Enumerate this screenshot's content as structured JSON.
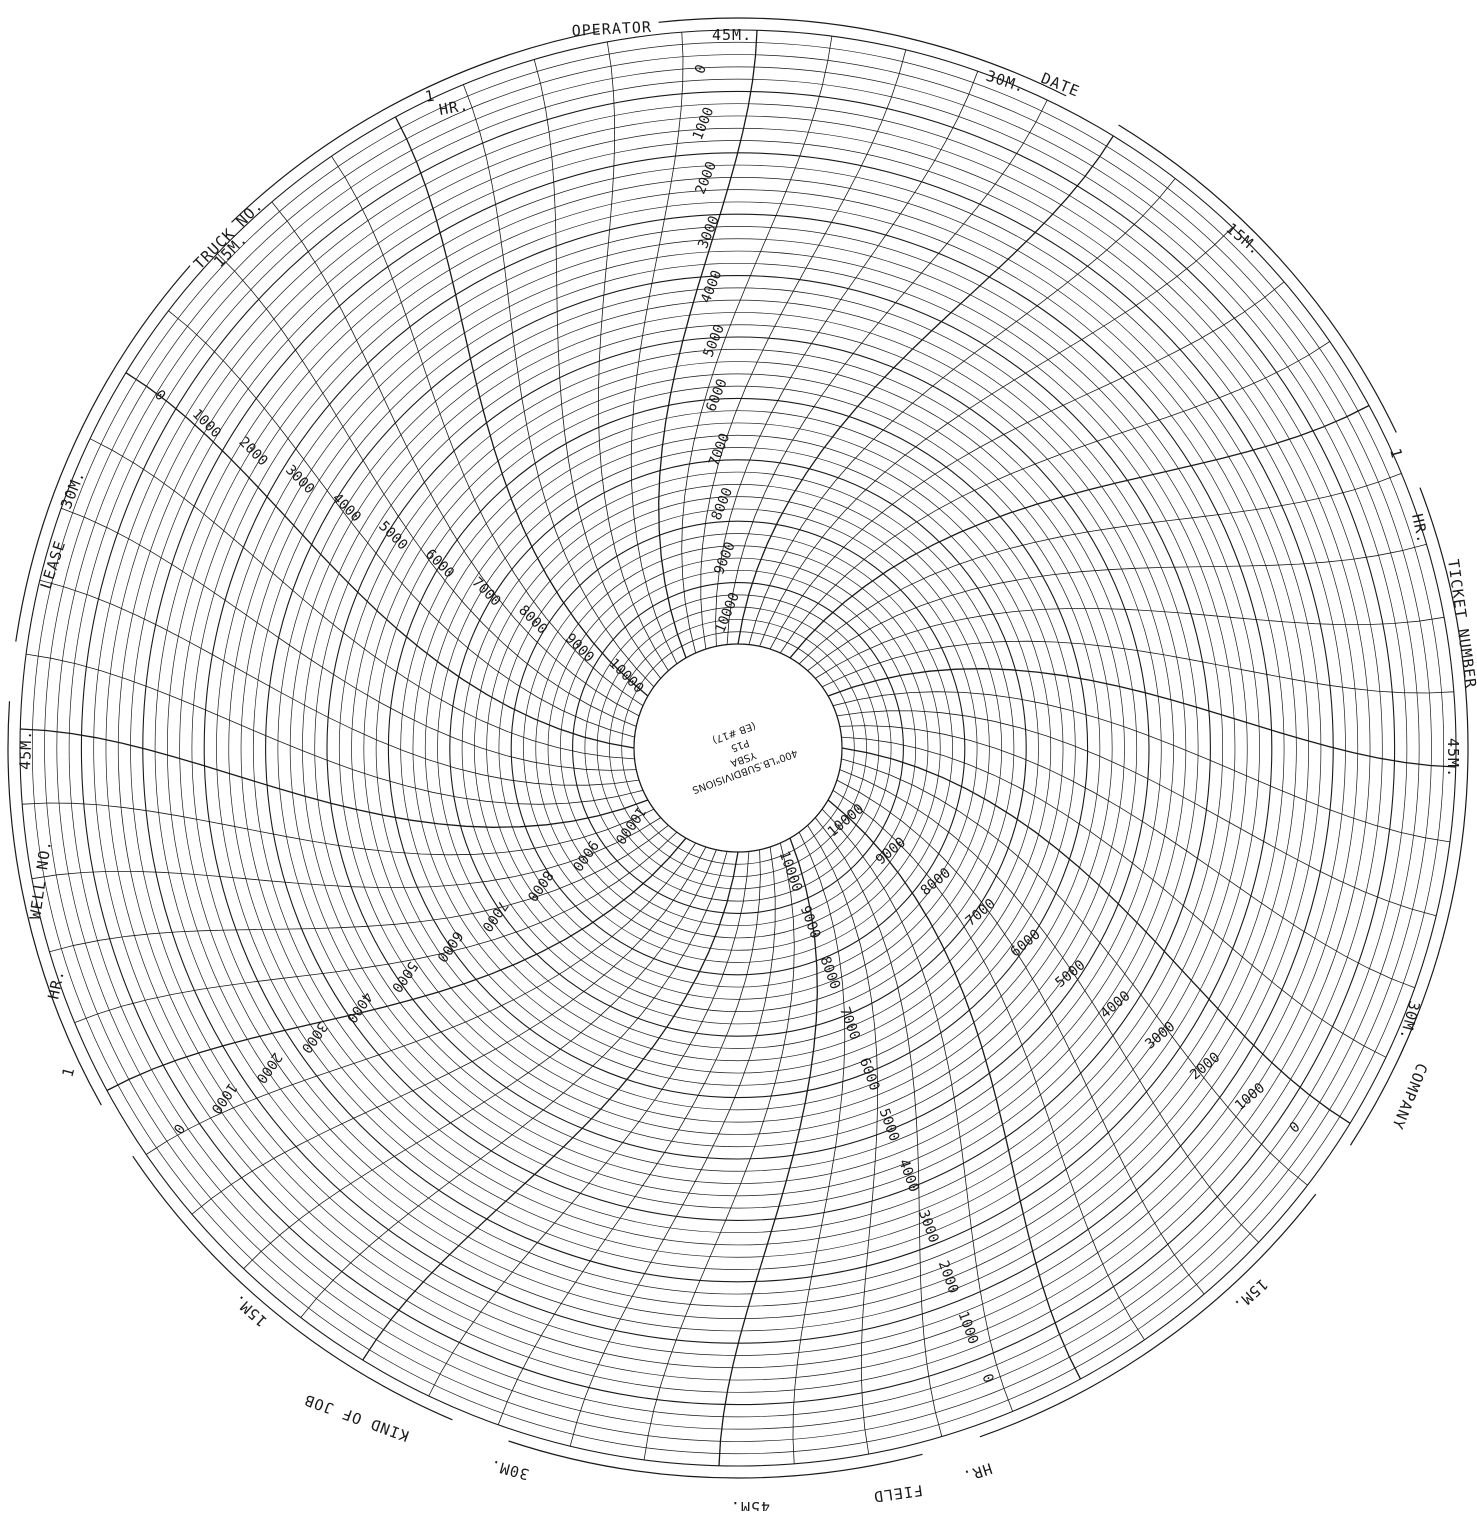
{
  "chart_info": {
    "type": "circular recording chart",
    "colors": {
      "ink": "#1a1a1a",
      "paper": "#ffffff"
    }
  },
  "labels": {
    "operator": "OPERATOR",
    "date": "DATE",
    "ticket_number": "TICKET NUMBER",
    "company": "COMPANY",
    "field": "FIELD",
    "kind_of_job": "KIND OF JOB",
    "well_no": "WELL NO.",
    "lease": "LEASE",
    "truck_no": "TRUCK NO.",
    "hr": "HR.",
    "hr_number": "1",
    "min_15": "15M.",
    "min_30": "30M.",
    "min_45": "45M."
  },
  "hub": {
    "line1": "YSBA",
    "line2": "P15",
    "line3": "(EB #17)",
    "line4": "400\"LB.SUBDIVISIONS"
  },
  "scale": {
    "values": [
      "0",
      "1000",
      "2000",
      "3000",
      "4000",
      "5000",
      "6000",
      "7000",
      "8000",
      "9000",
      "10000"
    ]
  }
}
